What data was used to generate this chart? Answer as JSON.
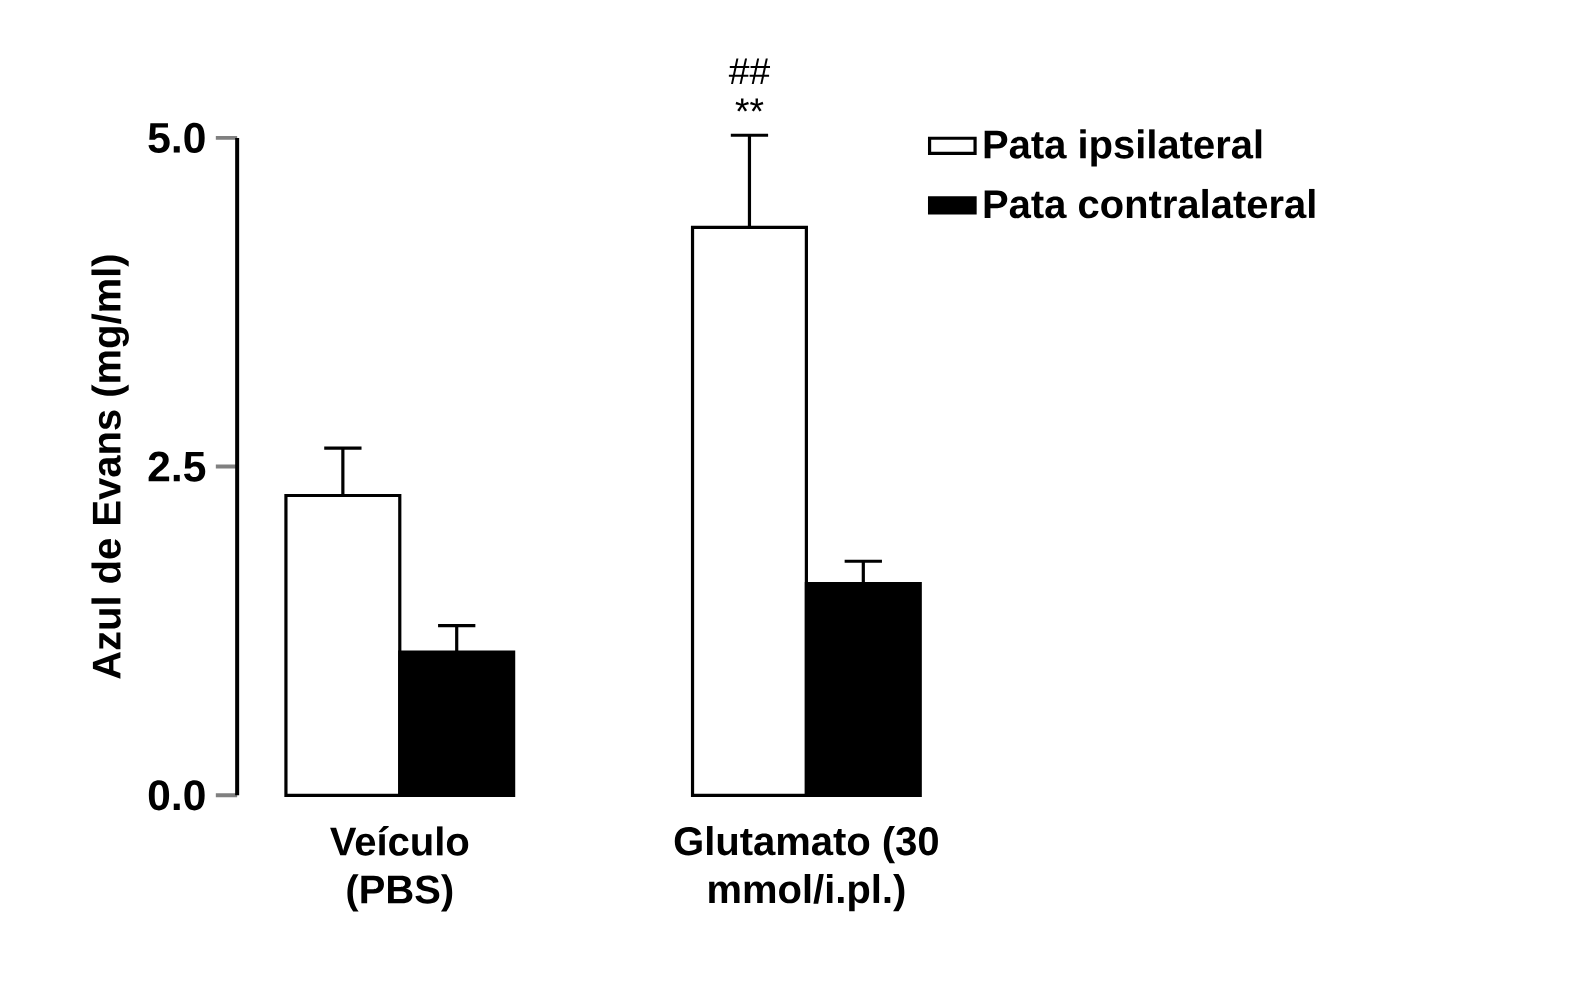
{
  "chart_data": {
    "type": "bar",
    "ylabel": "Azul de Evans (mg/ml)",
    "categories": [
      "Veículo (PBS)",
      "Glutamato (30 mmol/i.pl.)"
    ],
    "series": [
      {
        "name": "Pata ipsilateral",
        "color": "#ffffff",
        "values": [
          2.28,
          4.32
        ],
        "errors": [
          [
            2.28,
            2.64
          ],
          [
            4.32,
            5.02
          ]
        ]
      },
      {
        "name": "Pata contralateral",
        "color": "#000000",
        "values": [
          1.09,
          1.61
        ],
        "errors": [
          [
            1.09,
            1.29
          ],
          [
            1.61,
            1.78
          ]
        ]
      }
    ],
    "ylim": [
      0,
      5
    ],
    "yticks": [
      {
        "value": 0,
        "label": "0.0"
      },
      {
        "value": 2.5,
        "label": "2.5"
      },
      {
        "value": 5,
        "label": "5.0"
      }
    ],
    "legend": "top right",
    "grid": false,
    "annotations": [
      "##",
      "**"
    ]
  }
}
